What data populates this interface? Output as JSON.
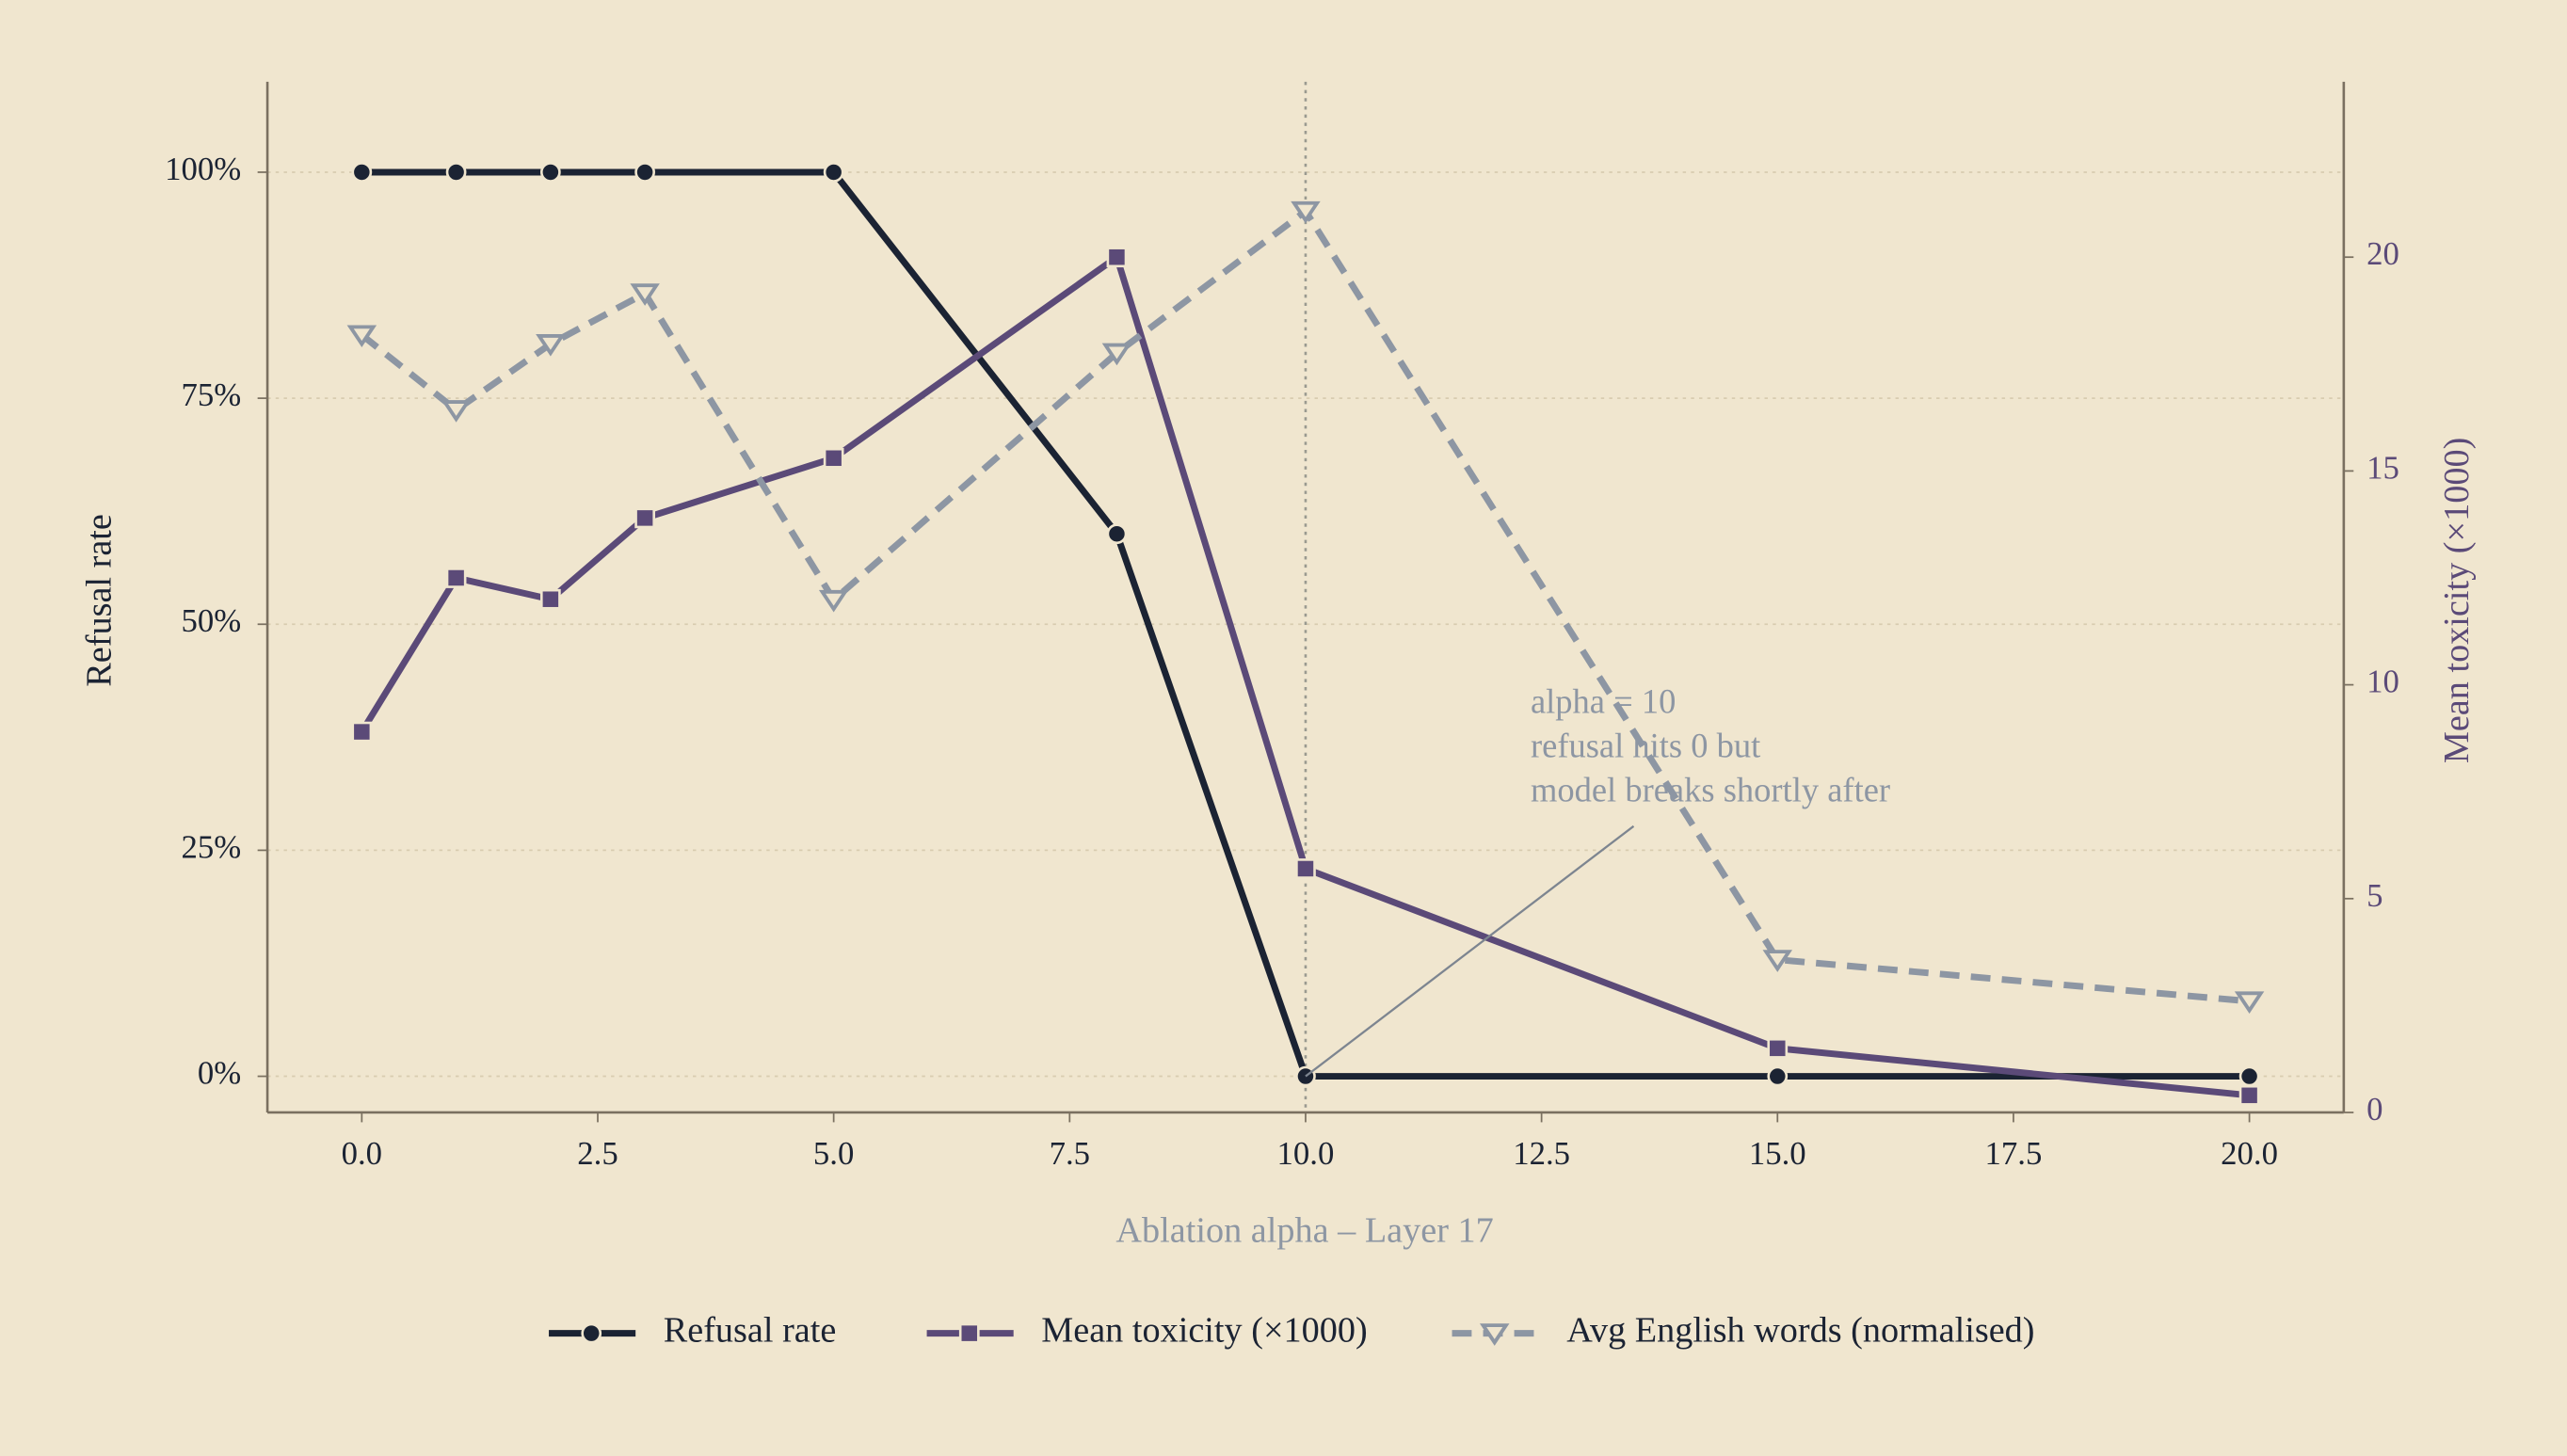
{
  "chart_data": {
    "type": "line",
    "x": [
      0,
      1,
      2,
      3,
      5,
      8,
      10,
      15,
      20
    ],
    "series": [
      {
        "name": "Refusal rate",
        "color": "#1b2333",
        "marker": "circle",
        "dash": false,
        "values": [
          1,
          1,
          1,
          1,
          1,
          0.6,
          0,
          0,
          0
        ]
      },
      {
        "name": "Mean toxicity (×1000)",
        "color": "#5b4a78",
        "marker": "square",
        "dash": false,
        "axis": "y2",
        "values": [
          8.9,
          12.5,
          12.0,
          13.9,
          15.3,
          20.0,
          5.7,
          1.5,
          0.4
        ]
      },
      {
        "name": "Avg English words (normalised)",
        "color": "#8d96a3",
        "marker": "triangle-down",
        "dash": true,
        "values": [
          0.82,
          0.737,
          0.81,
          0.866,
          0.527,
          0.8,
          0.957,
          0.129,
          0.083
        ]
      }
    ],
    "xlabel": "Ablation alpha – Layer 17",
    "ylabel": "Refusal rate",
    "y2label": "Mean toxicity (×1000)",
    "xlim": [
      -1,
      21
    ],
    "ylim": [
      -0.04,
      1.1
    ],
    "y2lim": [
      0,
      24.1
    ],
    "xticks": [
      {
        "value": 0,
        "label": "0.0"
      },
      2.5,
      {
        "value": 5,
        "label": "5.0"
      },
      7.5,
      {
        "value": 10,
        "label": "10.0"
      },
      12.5,
      {
        "value": 15,
        "label": "15.0"
      },
      17.5,
      {
        "value": 20,
        "label": "20.0"
      }
    ],
    "yticks": [
      {
        "value": 0,
        "label": "0%"
      },
      {
        "value": 0.25,
        "label": "25%"
      },
      {
        "value": 0.5,
        "label": "50%"
      },
      {
        "value": 0.75,
        "label": "75%"
      },
      {
        "value": 1,
        "label": "100%"
      }
    ],
    "y2ticks": [
      0,
      5,
      10,
      15,
      20
    ],
    "grid": true,
    "vline": 10,
    "annotation": {
      "lines": [
        "alpha = 10",
        "refusal hits 0 but",
        "model breaks shortly after"
      ],
      "x": 10,
      "y": 0
    },
    "legend": "bottom"
  }
}
